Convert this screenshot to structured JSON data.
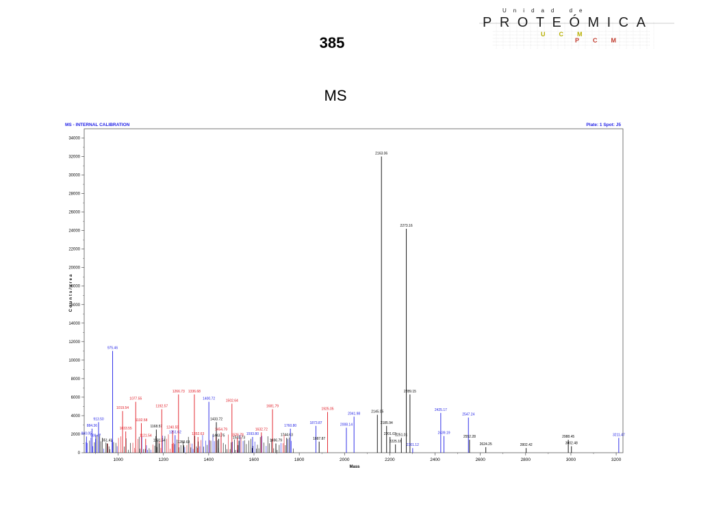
{
  "slide": {
    "title": "385",
    "subtitle": "MS"
  },
  "logo": {
    "top_word": "Unidad de",
    "main_word": "PROTEÓMICA",
    "sub_letters_1": "UCM",
    "sub_letters_2": "PCM",
    "main_color": "#1a1a1a",
    "accent_colors": [
      "#b8b000",
      "#c0392b"
    ]
  },
  "chart_data": {
    "type": "bar",
    "title": "MS - INTERNAL CALIBRATION",
    "subtitle": "Plate: 1 Spot: J5",
    "xlabel": "Mass",
    "ylabel": "Counts/area",
    "xlim": [
      850,
      3230
    ],
    "ylim": [
      0,
      35000
    ],
    "x_ticks": [
      1000,
      1200,
      1400,
      1600,
      1800,
      2000,
      2200,
      2400,
      2600,
      2800,
      3000,
      3200
    ],
    "y_ticks": [
      0,
      2000,
      4000,
      6000,
      8000,
      10000,
      12000,
      14000,
      16000,
      18000,
      20000,
      22000,
      24000,
      26000,
      28000,
      30000,
      32000,
      34000
    ],
    "colors": {
      "black": "#000000",
      "red": "#e0141e",
      "blue": "#1a1ae6"
    },
    "peaks": [
      {
        "mass": 860.05,
        "intensity": 1750,
        "color": "blue",
        "label": "860.05"
      },
      {
        "mass": 884.36,
        "intensity": 2600,
        "color": "blue",
        "label": "884.36"
      },
      {
        "mass": 900.47,
        "intensity": 1500,
        "color": "blue",
        "label": "900.47"
      },
      {
        "mass": 913.5,
        "intensity": 3300,
        "color": "blue",
        "label": "913.50"
      },
      {
        "mass": 951.41,
        "intensity": 1000,
        "color": "black",
        "label": "951.41"
      },
      {
        "mass": 975.46,
        "intensity": 11000,
        "color": "blue",
        "label": "975.46"
      },
      {
        "mass": 1019.54,
        "intensity": 4500,
        "color": "red",
        "label": "1019.54"
      },
      {
        "mass": 1033.55,
        "intensity": 2300,
        "color": "red",
        "label": "1033.55"
      },
      {
        "mass": 1077.55,
        "intensity": 5500,
        "color": "red",
        "label": "1077.55"
      },
      {
        "mass": 1102.58,
        "intensity": 3200,
        "color": "red",
        "label": "1102.58"
      },
      {
        "mass": 1121.54,
        "intensity": 1500,
        "color": "red",
        "label": "1121.54"
      },
      {
        "mass": 1168.57,
        "intensity": 2500,
        "color": "black",
        "label": "1168.57"
      },
      {
        "mass": 1181.54,
        "intensity": 1000,
        "color": "black",
        "label": "1181.54"
      },
      {
        "mass": 1192.57,
        "intensity": 4700,
        "color": "red",
        "label": "1192.57"
      },
      {
        "mass": 1240.55,
        "intensity": 2400,
        "color": "red",
        "label": "1240.55"
      },
      {
        "mass": 1251.62,
        "intensity": 1900,
        "color": "blue",
        "label": "1251.62"
      },
      {
        "mass": 1266.73,
        "intensity": 6300,
        "color": "red",
        "label": "1266.73"
      },
      {
        "mass": 1289.63,
        "intensity": 800,
        "color": "black",
        "label": "1289.63"
      },
      {
        "mass": 1336.68,
        "intensity": 6300,
        "color": "red",
        "label": "1336.68"
      },
      {
        "mass": 1352.63,
        "intensity": 1700,
        "color": "red",
        "label": "1352.63"
      },
      {
        "mass": 1400.72,
        "intensity": 5500,
        "color": "blue",
        "label": "1400.72"
      },
      {
        "mass": 1433.72,
        "intensity": 3300,
        "color": "black",
        "label": "1433.72"
      },
      {
        "mass": 1443.75,
        "intensity": 1500,
        "color": "black",
        "label": "1443.75"
      },
      {
        "mass": 1454.79,
        "intensity": 2200,
        "color": "red",
        "label": "1454.79"
      },
      {
        "mass": 1502.64,
        "intensity": 5300,
        "color": "red",
        "label": "1502.64"
      },
      {
        "mass": 1533.73,
        "intensity": 1300,
        "color": "black",
        "label": "1533.73"
      },
      {
        "mass": 1526.78,
        "intensity": 1600,
        "color": "red",
        "label": "1526.78"
      },
      {
        "mass": 1593.8,
        "intensity": 1700,
        "color": "blue",
        "label": "1593.80"
      },
      {
        "mass": 1632.72,
        "intensity": 2200,
        "color": "red",
        "label": "1632.72"
      },
      {
        "mass": 1681.79,
        "intensity": 4700,
        "color": "red",
        "label": "1681.79"
      },
      {
        "mass": 1696.79,
        "intensity": 1000,
        "color": "black",
        "label": "1696.79"
      },
      {
        "mass": 1744.63,
        "intensity": 1600,
        "color": "black",
        "label": "1744.63"
      },
      {
        "mass": 1760.8,
        "intensity": 2600,
        "color": "blue",
        "label": "1760.80"
      },
      {
        "mass": 1873.87,
        "intensity": 2900,
        "color": "blue",
        "label": "1873.87"
      },
      {
        "mass": 1887.87,
        "intensity": 1200,
        "color": "black",
        "label": "1887.87"
      },
      {
        "mass": 1925.05,
        "intensity": 4400,
        "color": "red",
        "label": "1925.05"
      },
      {
        "mass": 2008.14,
        "intensity": 2700,
        "color": "blue",
        "label": "2008.14"
      },
      {
        "mass": 2041.98,
        "intensity": 3900,
        "color": "blue",
        "label": "2041.98"
      },
      {
        "mass": 2145.05,
        "intensity": 4100,
        "color": "black",
        "label": "2145.05"
      },
      {
        "mass": 2163.06,
        "intensity": 32000,
        "color": "black",
        "label": "2163.06"
      },
      {
        "mass": 2185.94,
        "intensity": 2900,
        "color": "black",
        "label": "2185.94"
      },
      {
        "mass": 2201.03,
        "intensity": 1700,
        "color": "black",
        "label": "2201.03"
      },
      {
        "mass": 2225.16,
        "intensity": 900,
        "color": "black",
        "label": "2225.16"
      },
      {
        "mass": 2251.01,
        "intensity": 1600,
        "color": "black",
        "label": "2251.01"
      },
      {
        "mass": 2273.16,
        "intensity": 24200,
        "color": "black",
        "label": "2273.16"
      },
      {
        "mass": 2289.15,
        "intensity": 6300,
        "color": "black",
        "label": "2289.15"
      },
      {
        "mass": 2301.12,
        "intensity": 500,
        "color": "blue",
        "label": "2301.12"
      },
      {
        "mass": 2425.17,
        "intensity": 4300,
        "color": "blue",
        "label": "2425.17"
      },
      {
        "mass": 2439.19,
        "intensity": 1800,
        "color": "blue",
        "label": "2439.19"
      },
      {
        "mass": 2547.24,
        "intensity": 3800,
        "color": "blue",
        "label": "2547.24"
      },
      {
        "mass": 2552.28,
        "intensity": 1400,
        "color": "black",
        "label": "2552.28"
      },
      {
        "mass": 2624.25,
        "intensity": 600,
        "color": "black",
        "label": "2624.25"
      },
      {
        "mass": 2802.42,
        "intensity": 500,
        "color": "black",
        "label": "2802.42"
      },
      {
        "mass": 2988.45,
        "intensity": 1400,
        "color": "black",
        "label": "2988.45"
      },
      {
        "mass": 3002.48,
        "intensity": 700,
        "color": "black",
        "label": "3002.48"
      },
      {
        "mass": 3211.47,
        "intensity": 1600,
        "color": "blue",
        "label": "3211.47"
      }
    ]
  }
}
